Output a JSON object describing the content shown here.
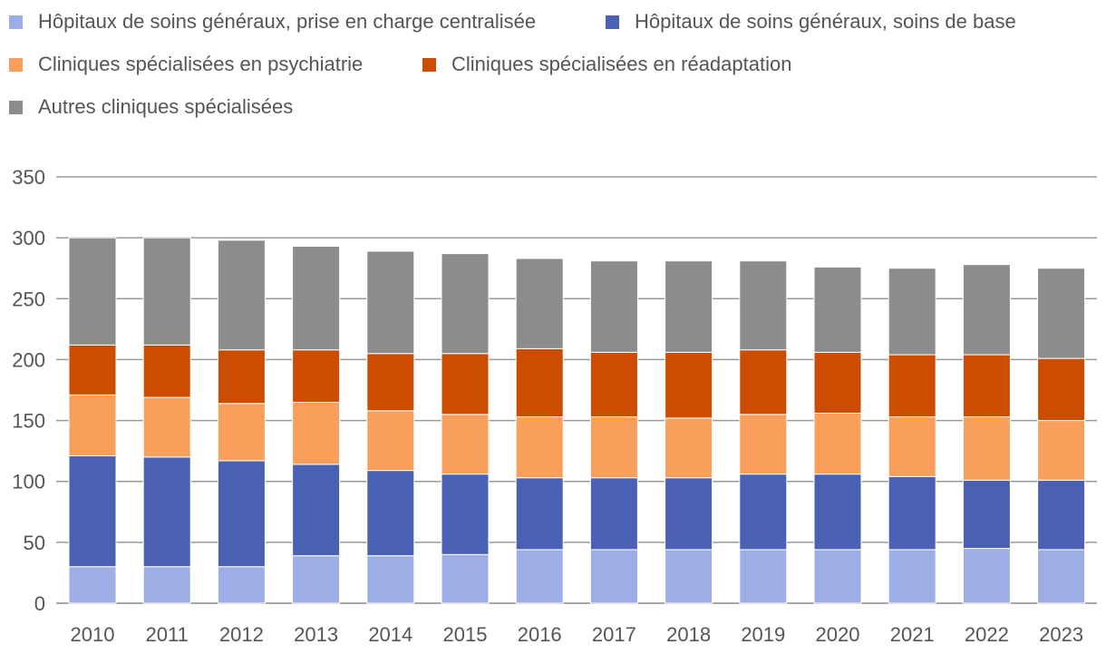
{
  "chart_data": {
    "type": "bar",
    "stacked": true,
    "title": "",
    "xlabel": "",
    "ylabel": "",
    "ylim": [
      0,
      350
    ],
    "yticks": [
      0,
      50,
      100,
      150,
      200,
      250,
      300,
      350
    ],
    "grid": true,
    "legend_position": "top-left",
    "categories": [
      "2010",
      "2011",
      "2012",
      "2013",
      "2014",
      "2015",
      "2016",
      "2017",
      "2018",
      "2019",
      "2020",
      "2021",
      "2022",
      "2023"
    ],
    "series": [
      {
        "name": "Hôpitaux de soins généraux, prise en charge centralisée",
        "color": "#9daee6",
        "values": [
          30,
          30,
          30,
          39,
          39,
          40,
          44,
          44,
          44,
          44,
          44,
          44,
          45,
          44
        ]
      },
      {
        "name": "Hôpitaux de soins généraux, soins de base",
        "color": "#4a61b3",
        "values": [
          91,
          90,
          87,
          75,
          70,
          66,
          59,
          59,
          59,
          62,
          62,
          60,
          56,
          57
        ]
      },
      {
        "name": "Cliniques spécialisées en psychiatrie",
        "color": "#f89f5b",
        "values": [
          50,
          49,
          47,
          51,
          49,
          49,
          50,
          50,
          49,
          49,
          50,
          49,
          52,
          49
        ]
      },
      {
        "name": "Cliniques spécialisées en réadaptation",
        "color": "#cc4c02",
        "values": [
          41,
          43,
          44,
          43,
          47,
          50,
          56,
          53,
          54,
          53,
          50,
          51,
          51,
          51
        ]
      },
      {
        "name": "Autres cliniques spécialisées",
        "color": "#8c8c8c",
        "values": [
          88,
          88,
          90,
          85,
          84,
          82,
          74,
          75,
          75,
          73,
          70,
          71,
          74,
          74
        ]
      }
    ]
  }
}
